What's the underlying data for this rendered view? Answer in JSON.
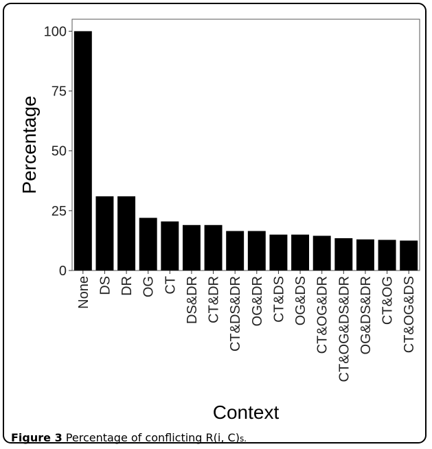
{
  "caption": {
    "label": "Figure 3",
    "text": "Percentage of conflicting R(i, C)",
    "suffix": "s."
  },
  "chart_data": {
    "type": "bar",
    "title": "",
    "xlabel": "Context",
    "ylabel": "Percentage",
    "ylim": [
      0,
      105
    ],
    "yticks": [
      0,
      25,
      50,
      75,
      100
    ],
    "grid": false,
    "categories": [
      "None",
      "DS",
      "DR",
      "OG",
      "CT",
      "DS&DR",
      "CT&DR",
      "CT&DS&DR",
      "OG&DR",
      "CT&DS",
      "OG&DS",
      "CT&OG&DR",
      "CT&OG&DS&DR",
      "OG&DS&DR",
      "CT&OG",
      "CT&OG&DS"
    ],
    "values": [
      100,
      31,
      31,
      22,
      20.5,
      19,
      19,
      16.5,
      16.5,
      15,
      15,
      14.5,
      13.5,
      13,
      12.8,
      12.5
    ],
    "bar_color": "#000000"
  }
}
